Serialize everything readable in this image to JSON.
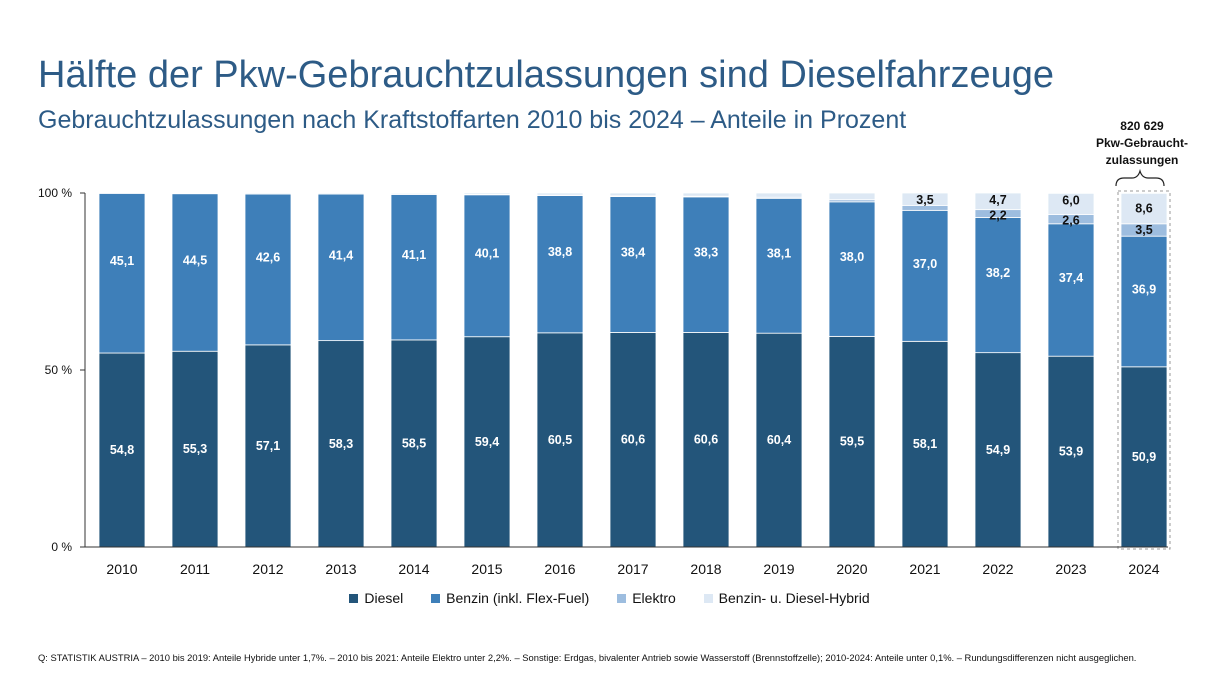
{
  "title": "Hälfte der Pkw-Gebrauchtzulassungen sind Dieselfahrzeuge",
  "subtitle": "Gebrauchtzulassungen nach Kraftstoffarten 2010 bis 2024 – Anteile in Prozent",
  "callout": {
    "line1": "820 629",
    "line2": "Pkw-Gebraucht-",
    "line3": "zulassungen"
  },
  "footnote": "Q: STATISTIK AUSTRIA – 2010 bis 2019: Anteile Hybride unter 1,7%. – 2010 bis 2021: Anteile Elektro unter 2,2%. – Sonstige: Erdgas, bivalenter Antrieb sowie Wasserstoff (Brennstoffzelle); 2010-2024: Anteile unter 0,1%. – Rundungsdifferenzen nicht ausgeglichen.",
  "colors": {
    "diesel": "#23557a",
    "benzin": "#3e7fb9",
    "elektro": "#9dbddf",
    "hybrid": "#dde8f4",
    "axis": "#333333"
  },
  "chart_data": {
    "type": "bar",
    "stacked": true,
    "categories": [
      "2010",
      "2011",
      "2012",
      "2013",
      "2014",
      "2015",
      "2016",
      "2017",
      "2018",
      "2019",
      "2020",
      "2021",
      "2022",
      "2023",
      "2024"
    ],
    "ylim": [
      0,
      100
    ],
    "yticks": [
      "0 %",
      "50 %",
      "100 %"
    ],
    "legend_position": "bottom",
    "series": [
      {
        "name": "Diesel",
        "key": "diesel",
        "values": [
          54.8,
          55.3,
          57.1,
          58.3,
          58.5,
          59.4,
          60.5,
          60.6,
          60.6,
          60.4,
          59.5,
          58.1,
          54.9,
          53.9,
          50.9
        ],
        "labels": [
          "54,8",
          "55,3",
          "57,1",
          "58,3",
          "58,5",
          "59,4",
          "60,5",
          "60,6",
          "60,6",
          "60,4",
          "59,5",
          "58,1",
          "54,9",
          "53,9",
          "50,9"
        ]
      },
      {
        "name": "Benzin (inkl. Flex-Fuel)",
        "key": "benzin",
        "values": [
          45.1,
          44.5,
          42.6,
          41.4,
          41.1,
          40.1,
          38.8,
          38.4,
          38.3,
          38.1,
          38.0,
          37.0,
          38.2,
          37.4,
          36.9
        ],
        "labels": [
          "45,1",
          "44,5",
          "42,6",
          "41,4",
          "41,1",
          "40,1",
          "38,8",
          "38,4",
          "38,3",
          "38,1",
          "38,0",
          "37,0",
          "38,2",
          "37,4",
          "36,9"
        ]
      },
      {
        "name": "Elektro",
        "key": "elektro",
        "values": [
          0.0,
          0.0,
          0.0,
          0.0,
          0.1,
          0.1,
          0.1,
          0.2,
          0.2,
          0.3,
          0.6,
          1.4,
          2.2,
          2.6,
          3.5
        ],
        "labels": [
          "",
          "",
          "",
          "",
          "",
          "",
          "",
          "",
          "",
          "",
          "",
          "",
          "2,2",
          "2,6",
          "3,5"
        ]
      },
      {
        "name": "Benzin- u. Diesel-Hybrid",
        "key": "hybrid",
        "values": [
          0.1,
          0.2,
          0.3,
          0.3,
          0.3,
          0.4,
          0.6,
          0.8,
          0.9,
          1.2,
          1.9,
          3.5,
          4.7,
          6.0,
          8.6
        ],
        "labels": [
          "",
          "",
          "",
          "",
          "",
          "",
          "",
          "",
          "",
          "",
          "",
          "3,5",
          "4,7",
          "6,0",
          "8,6"
        ]
      }
    ]
  }
}
